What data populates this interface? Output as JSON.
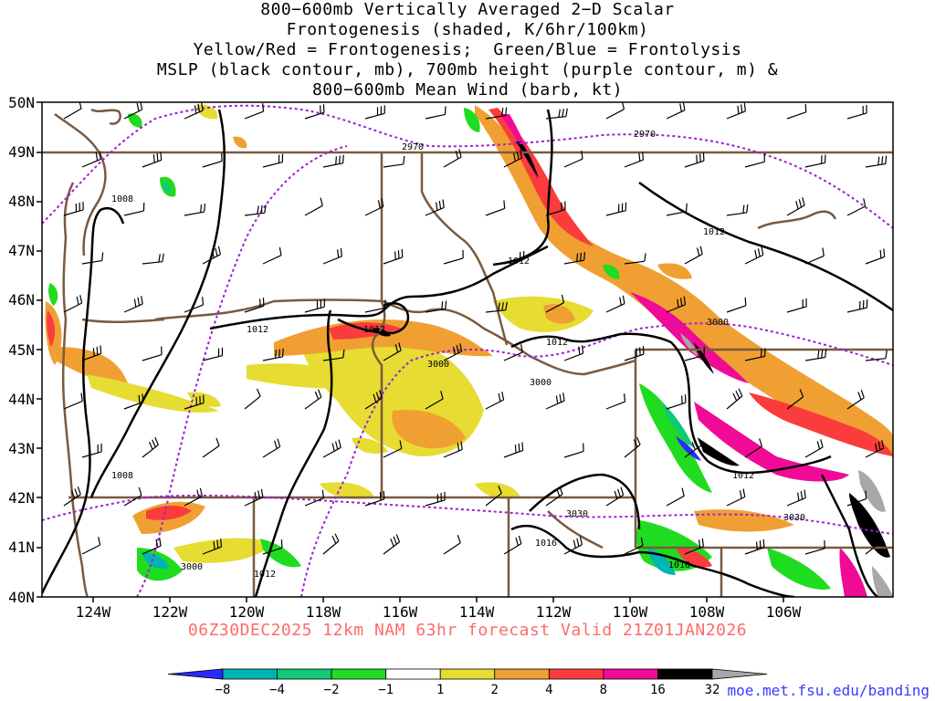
{
  "title_lines": [
    "800−600mb Vertically Averaged 2−D Scalar",
    "Frontogenesis (shaded, K/6hr/100km)",
    "Yellow/Red = Frontogenesis;  Green/Blue = Frontolysis",
    "MSLP (black contour, mb), 700mb height (purple contour, m) &",
    "800−600mb Mean Wind (barb, kt)"
  ],
  "subtitle": "06Z30DEC2025 12km NAM 63hr forecast Valid 21Z01JAN2026",
  "credit": "moe.met.fsu.edu/banding",
  "lat_labels": [
    "50N",
    "49N",
    "48N",
    "47N",
    "46N",
    "45N",
    "44N",
    "43N",
    "42N",
    "41N",
    "40N"
  ],
  "lon_labels": [
    "124W",
    "122W",
    "120W",
    "118W",
    "116W",
    "114W",
    "112W",
    "110W",
    "108W",
    "106W"
  ],
  "mslp_labels": [
    "1008",
    "1012",
    "1012",
    "1012",
    "1012",
    "1012",
    "1012",
    "1008",
    "1016",
    "1016",
    "1012"
  ],
  "height_labels": [
    "2970",
    "2970",
    "3000",
    "3000",
    "3000",
    "3000",
    "3030",
    "3030"
  ],
  "colorbar": {
    "ticks": [
      "−8",
      "−4",
      "−2",
      "−1",
      "1",
      "2",
      "4",
      "8",
      "16",
      "32"
    ],
    "colors": [
      "#2a2aff",
      "#00b4b4",
      "#10c878",
      "#20dc20",
      "#ffffff",
      "#e6dc32",
      "#f0a032",
      "#fa3c3c",
      "#f00a96",
      "#000000",
      "#a8a8a8"
    ]
  }
}
